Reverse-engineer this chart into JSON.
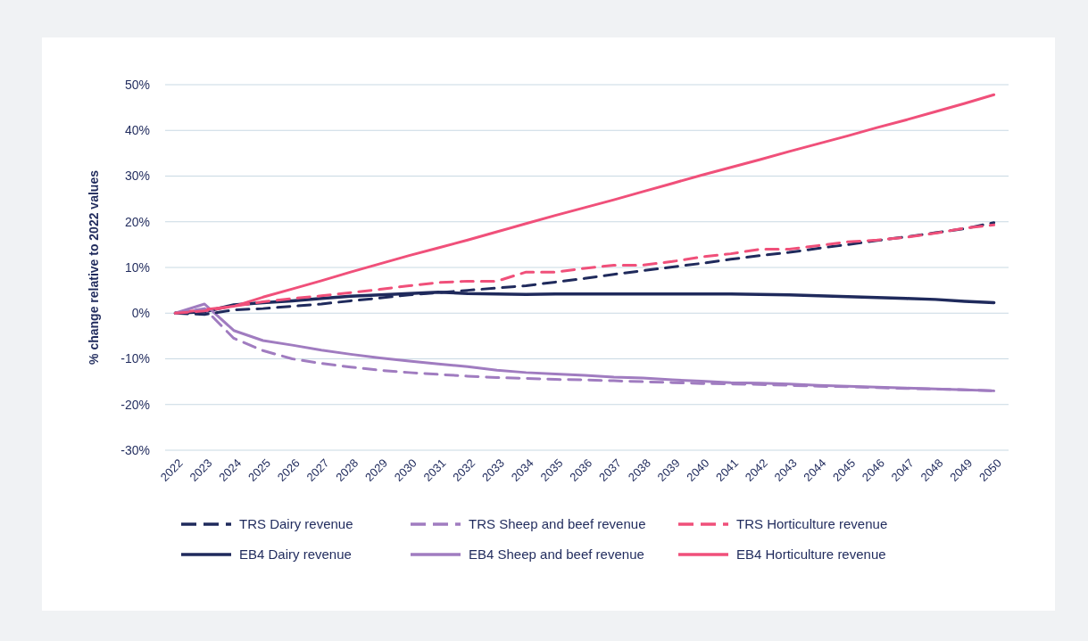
{
  "chart_data": {
    "type": "line",
    "ylabel": "% change relative to 2022 values",
    "categories": [
      "2022",
      "2023",
      "2024",
      "2025",
      "2026",
      "2027",
      "2028",
      "2029",
      "2030",
      "2031",
      "2032",
      "2033",
      "2034",
      "2035",
      "2036",
      "2037",
      "2038",
      "2039",
      "2040",
      "2041",
      "2042",
      "2043",
      "2044",
      "2045",
      "2046",
      "2047",
      "2048",
      "2049",
      "2050"
    ],
    "ylim": [
      -30,
      50
    ],
    "yticks": [
      {
        "value": -30,
        "label": "-30%"
      },
      {
        "value": -20,
        "label": "-20%"
      },
      {
        "value": -10,
        "label": "-10%"
      },
      {
        "value": 0,
        "label": "0%"
      },
      {
        "value": 10,
        "label": "10%"
      },
      {
        "value": 20,
        "label": "20%"
      },
      {
        "value": 30,
        "label": "30%"
      },
      {
        "value": 40,
        "label": "40%"
      },
      {
        "value": 50,
        "label": "50%"
      }
    ],
    "grid": "y",
    "legend": "bottom",
    "marker": "none",
    "series": [
      {
        "name": "TRS Dairy revenue",
        "color": "#1f2a5c",
        "line_style": "dashed",
        "values": [
          0,
          -0.3,
          0.7,
          1.0,
          1.5,
          2.0,
          2.7,
          3.3,
          4.0,
          4.5,
          5.0,
          5.5,
          6.0,
          6.8,
          7.6,
          8.5,
          9.3,
          10.1,
          10.9,
          11.8,
          12.6,
          13.3,
          14.2,
          15.0,
          15.9,
          16.7,
          17.6,
          18.5,
          19.8
        ]
      },
      {
        "name": "TRS Sheep and beef revenue",
        "color": "#a07cc0",
        "line_style": "dashed",
        "values": [
          0,
          1.0,
          -5.5,
          -8.2,
          -10.0,
          -11.0,
          -11.8,
          -12.5,
          -13.0,
          -13.4,
          -13.8,
          -14.1,
          -14.3,
          -14.5,
          -14.6,
          -14.8,
          -15.0,
          -15.2,
          -15.4,
          -15.5,
          -15.6,
          -15.8,
          -16.0,
          -16.1,
          -16.3,
          -16.5,
          -16.6,
          -16.8,
          -17.0
        ]
      },
      {
        "name": "TRS Horticulture revenue",
        "color": "#f0507a",
        "line_style": "dashed",
        "values": [
          0,
          0.5,
          1.5,
          2.5,
          3.2,
          3.8,
          4.5,
          5.2,
          6.0,
          6.7,
          7.0,
          7.0,
          9.0,
          9.0,
          9.8,
          10.5,
          10.5,
          11.3,
          12.3,
          13.0,
          14.0,
          14.0,
          14.8,
          15.6,
          16.0,
          16.6,
          17.5,
          18.6,
          19.3
        ]
      },
      {
        "name": "EB4 Dairy revenue",
        "color": "#1f2a5c",
        "line_style": "solid",
        "values": [
          0,
          0.3,
          1.8,
          2.3,
          2.7,
          3.2,
          3.7,
          4.0,
          4.3,
          4.6,
          4.3,
          4.2,
          4.1,
          4.2,
          4.2,
          4.2,
          4.2,
          4.2,
          4.2,
          4.2,
          4.1,
          4.0,
          3.8,
          3.6,
          3.4,
          3.2,
          3.0,
          2.6,
          2.3
        ]
      },
      {
        "name": "EB4 Sheep and beef revenue",
        "color": "#a07cc0",
        "line_style": "solid",
        "values": [
          0,
          2.0,
          -3.8,
          -6.0,
          -7.0,
          -8.1,
          -9.0,
          -9.8,
          -10.5,
          -11.1,
          -11.7,
          -12.5,
          -13.0,
          -13.3,
          -13.6,
          -14.0,
          -14.2,
          -14.6,
          -14.9,
          -15.2,
          -15.3,
          -15.5,
          -15.8,
          -16.0,
          -16.2,
          -16.4,
          -16.6,
          -16.8,
          -17.0
        ]
      },
      {
        "name": "EB4 Horticulture revenue",
        "color": "#f0507a",
        "line_style": "solid",
        "values": [
          0,
          0.8,
          1.5,
          3.5,
          5.3,
          7.1,
          9.0,
          10.8,
          12.6,
          14.3,
          16.0,
          17.8,
          19.6,
          21.4,
          23.1,
          24.8,
          26.6,
          28.4,
          30.2,
          31.9,
          33.6,
          35.4,
          37.1,
          38.8,
          40.6,
          42.3,
          44.1,
          45.9,
          47.8
        ]
      }
    ]
  }
}
